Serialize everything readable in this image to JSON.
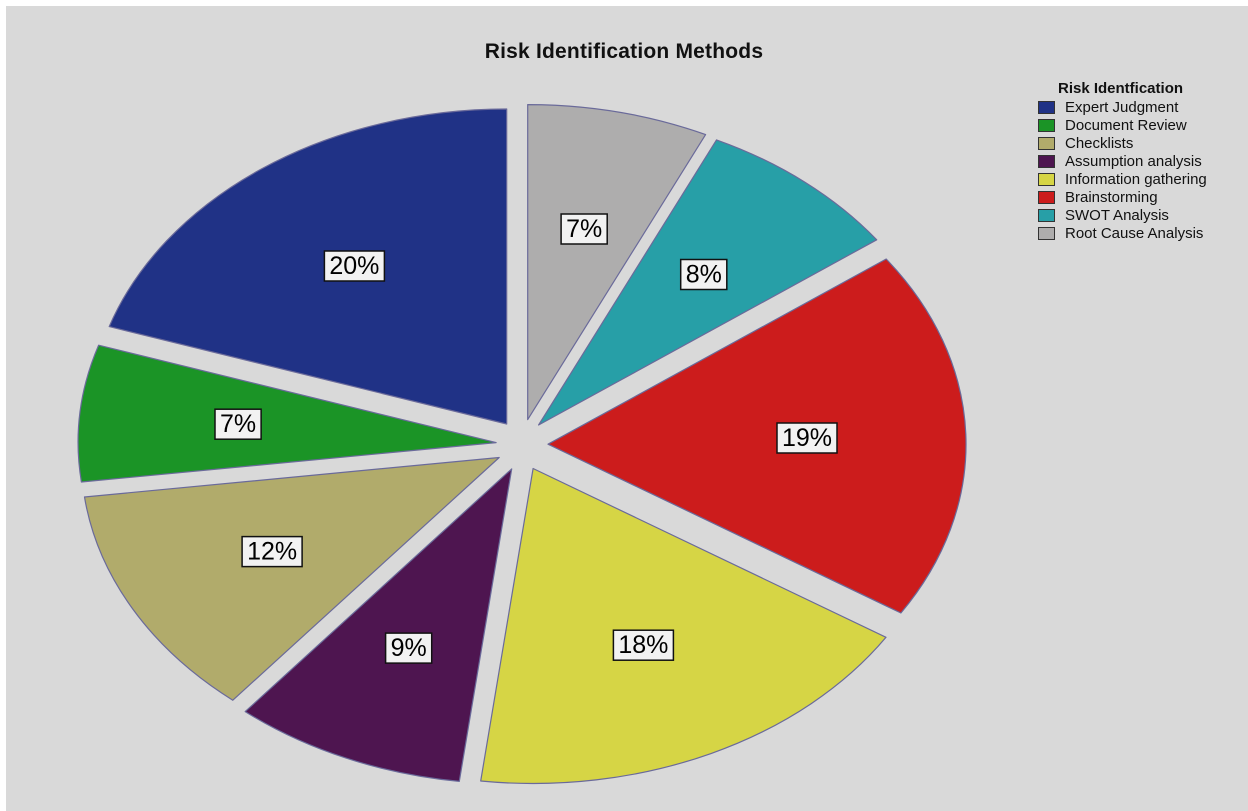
{
  "chart_data": {
    "type": "pie",
    "title": "Risk Identification Methods",
    "legend_title": "Risk Identfication",
    "legend_position": "top-right",
    "exploded": true,
    "start_angle_deg": 0,
    "direction": "clockwise",
    "slices": [
      {
        "label": "Root Cause Analysis",
        "value": 7,
        "display": "7%",
        "color": "#aeadad"
      },
      {
        "label": "SWOT Analysis",
        "value": 8,
        "display": "8%",
        "color": "#279fa7"
      },
      {
        "label": "Brainstorming",
        "value": 19,
        "display": "19%",
        "color": "#cc1c1c"
      },
      {
        "label": "Information gathering",
        "value": 18,
        "display": "18%",
        "color": "#d6d545"
      },
      {
        "label": "Assumption analysis",
        "value": 9,
        "display": "9%",
        "color": "#4e1550"
      },
      {
        "label": "Checklists",
        "value": 12,
        "display": "12%",
        "color": "#b1ab6b"
      },
      {
        "label": "Document Review",
        "value": 7,
        "display": "7%",
        "color": "#1b9426"
      },
      {
        "label": "Expert Judgment",
        "value": 20,
        "display": "20%",
        "color": "#203286"
      }
    ],
    "legend": [
      {
        "label": "Expert Judgment",
        "color": "#203286"
      },
      {
        "label": "Document Review",
        "color": "#1b9426"
      },
      {
        "label": "Checklists",
        "color": "#b1ab6b"
      },
      {
        "label": "Assumption analysis",
        "color": "#4e1550"
      },
      {
        "label": "Information gathering",
        "color": "#d6d545"
      },
      {
        "label": "Brainstorming",
        "color": "#cc1c1c"
      },
      {
        "label": "SWOT Analysis",
        "color": "#279fa7"
      },
      {
        "label": "Root Cause Analysis",
        "color": "#aeadad"
      }
    ]
  }
}
